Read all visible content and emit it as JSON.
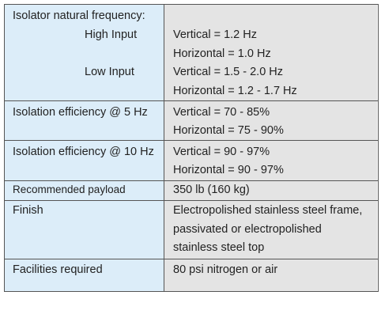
{
  "table": {
    "rows": [
      {
        "label": "Isolator natural frequency:",
        "groups": [
          {
            "label": "High Input",
            "lines": [
              "Vertical = 1.2 Hz",
              "Horizontal = 1.0 Hz"
            ]
          },
          {
            "label": "Low Input",
            "lines": [
              "Vertical = 1.5 - 2.0 Hz",
              "Horizontal = 1.2 - 1.7 Hz"
            ]
          }
        ]
      },
      {
        "label": "Isolation efficiency @ 5 Hz",
        "lines": [
          "Vertical = 70 - 85%",
          "Horizontal = 75 - 90%"
        ]
      },
      {
        "label": "Isolation efficiency @ 10 Hz",
        "lines": [
          "Vertical = 90 - 97%",
          "Horizontal = 90 - 97%"
        ]
      },
      {
        "label": "Recommended payload",
        "lines": [
          "350 lb (160 kg)"
        ]
      },
      {
        "label": "Finish",
        "lines": [
          "Electropolished stainless steel frame,",
          "passivated or electropolished",
          "stainless steel top"
        ]
      },
      {
        "label": "Facilities required",
        "lines": [
          "80 psi nitrogen or air"
        ]
      }
    ]
  }
}
